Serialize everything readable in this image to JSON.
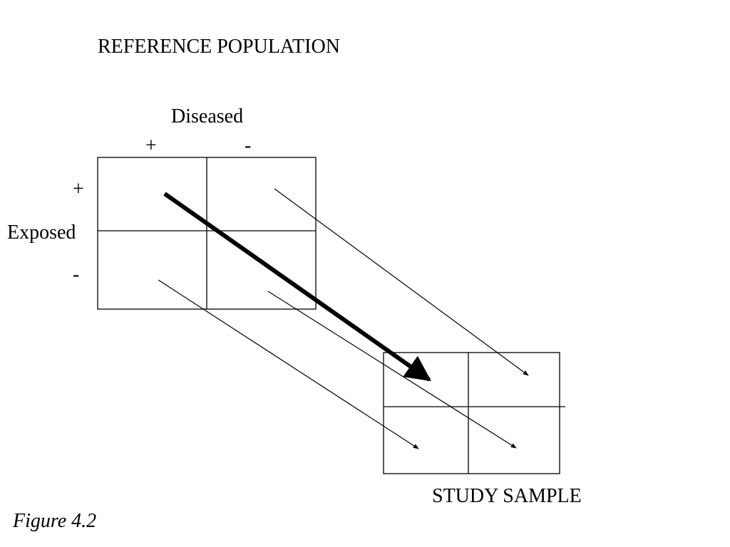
{
  "reference_population": {
    "title": "REFERENCE POPULATION",
    "column_header": "Diseased",
    "column_signs": [
      "+",
      "-"
    ],
    "row_header": "Exposed",
    "row_signs": [
      "+",
      "-"
    ]
  },
  "study_sample": {
    "title": "STUDY SAMPLE"
  },
  "caption": "Figure 4.2",
  "arrows": [
    {
      "from": "exposed+ / diseased+",
      "to": "exposed+ / diseased+",
      "emphasis": "bold"
    },
    {
      "from": "exposed+ / diseased-",
      "to": "exposed+ / diseased-",
      "emphasis": "thin"
    },
    {
      "from": "exposed- / diseased+",
      "to": "exposed- / diseased+",
      "emphasis": "thin"
    },
    {
      "from": "exposed- / diseased-",
      "to": "exposed- / diseased-",
      "emphasis": "thin"
    }
  ]
}
